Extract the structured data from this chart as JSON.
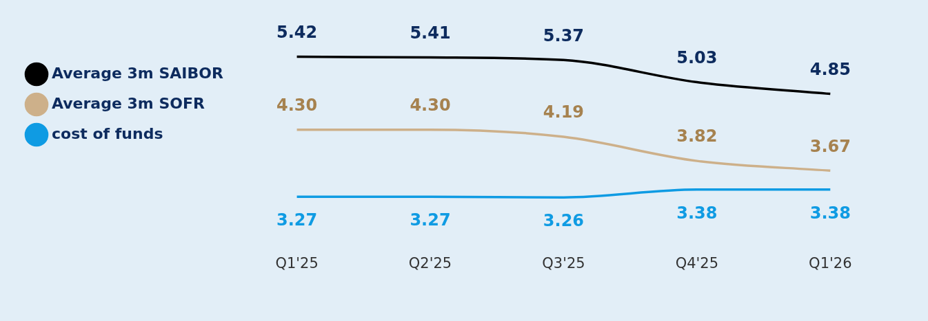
{
  "chart_data": {
    "type": "line",
    "categories": [
      "Q1'25",
      "Q2'25",
      "Q3'25",
      "Q4'25",
      "Q1'26"
    ],
    "series": [
      {
        "name": "Average 3m SAIBOR",
        "color": "#000000",
        "values": [
          5.42,
          5.41,
          5.37,
          5.03,
          4.85
        ],
        "value_labels": [
          "5.42",
          "5.41",
          "5.37",
          "5.03",
          "4.85"
        ]
      },
      {
        "name": "Average 3m SOFR",
        "color": "#cdb08a",
        "values": [
          4.3,
          4.3,
          4.19,
          3.82,
          3.67
        ],
        "value_labels": [
          "4.30",
          "4.30",
          "4.19",
          "3.82",
          "3.67"
        ]
      },
      {
        "name": "cost of funds",
        "color": "#0f9be3",
        "values": [
          3.27,
          3.27,
          3.26,
          3.38,
          3.38
        ],
        "value_labels": [
          "3.27",
          "3.27",
          "3.26",
          "3.38",
          "3.38"
        ]
      }
    ],
    "legend": "top left",
    "grid": false,
    "marker": "none",
    "line_style": "solid"
  }
}
